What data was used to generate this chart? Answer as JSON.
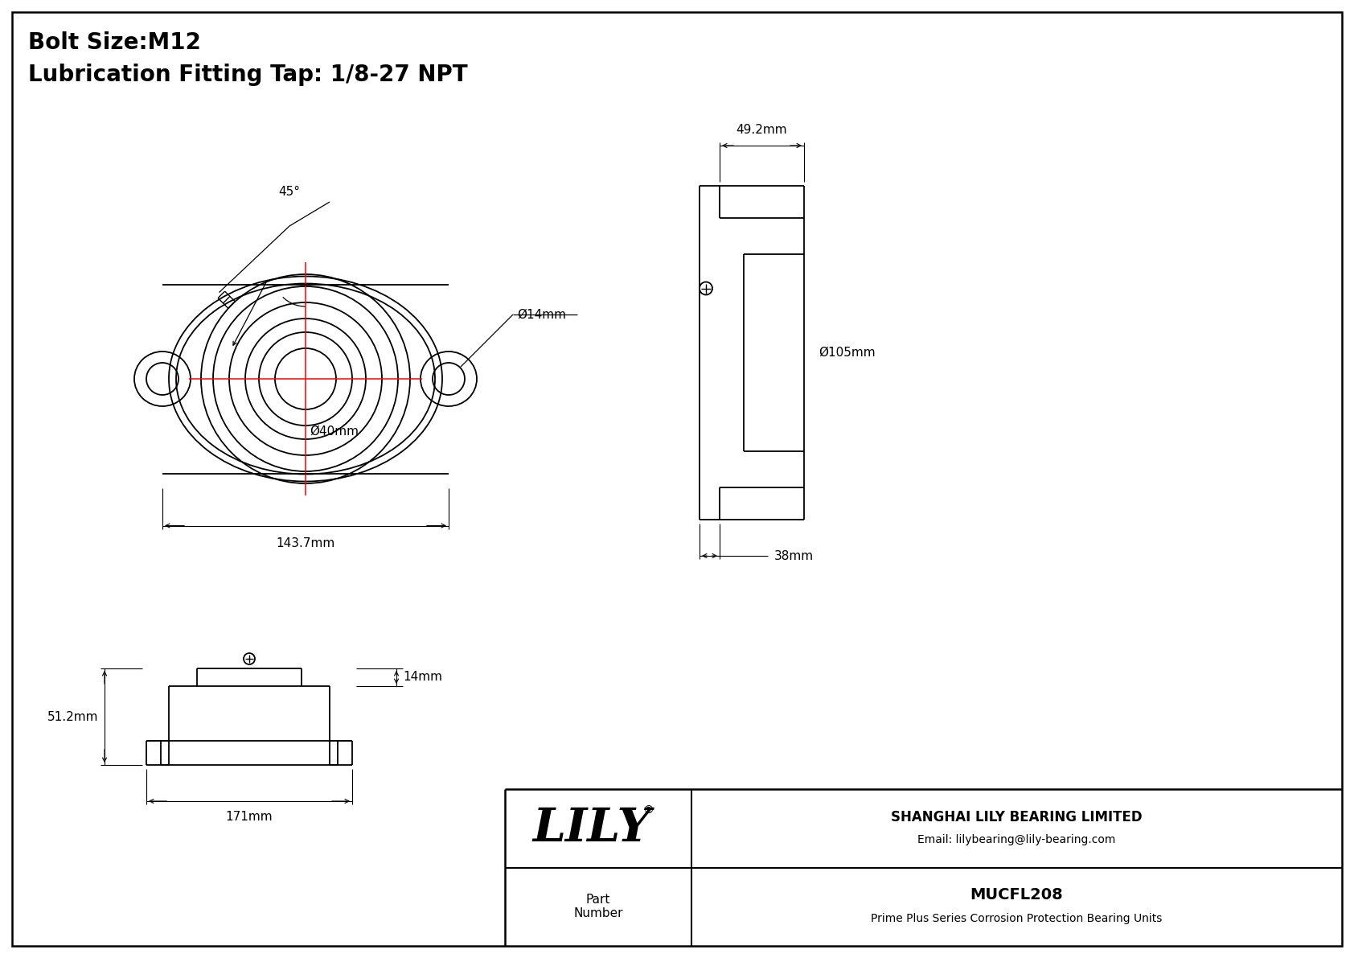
{
  "bg_color": "#ffffff",
  "line_color": "#000000",
  "red_color": "#ff0000",
  "title_line1": "Bolt Size:M12",
  "title_line2": "Lubrication Fitting Tap: 1/8-27 NPT",
  "title_fontsize": 20,
  "dim_fontsize": 11,
  "company_name": "SHANGHAI LILY BEARING LIMITED",
  "company_email": "Email: lilybearing@lily-bearing.com",
  "part_label": "Part\nNumber",
  "part_number": "MUCFL208",
  "part_desc": "Prime Plus Series Corrosion Protection Bearing Units",
  "logo_text": "LILY",
  "dims": {
    "bolt_hole_dia": "Ø14mm",
    "bore_dia": "Ø40mm",
    "width": "143.7mm",
    "side_width": "49.2mm",
    "side_dia": "Ø105mm",
    "side_depth": "38mm",
    "bot_height": "51.2mm",
    "bot_width": "171mm",
    "bot_step": "14mm",
    "angle": "45°"
  }
}
